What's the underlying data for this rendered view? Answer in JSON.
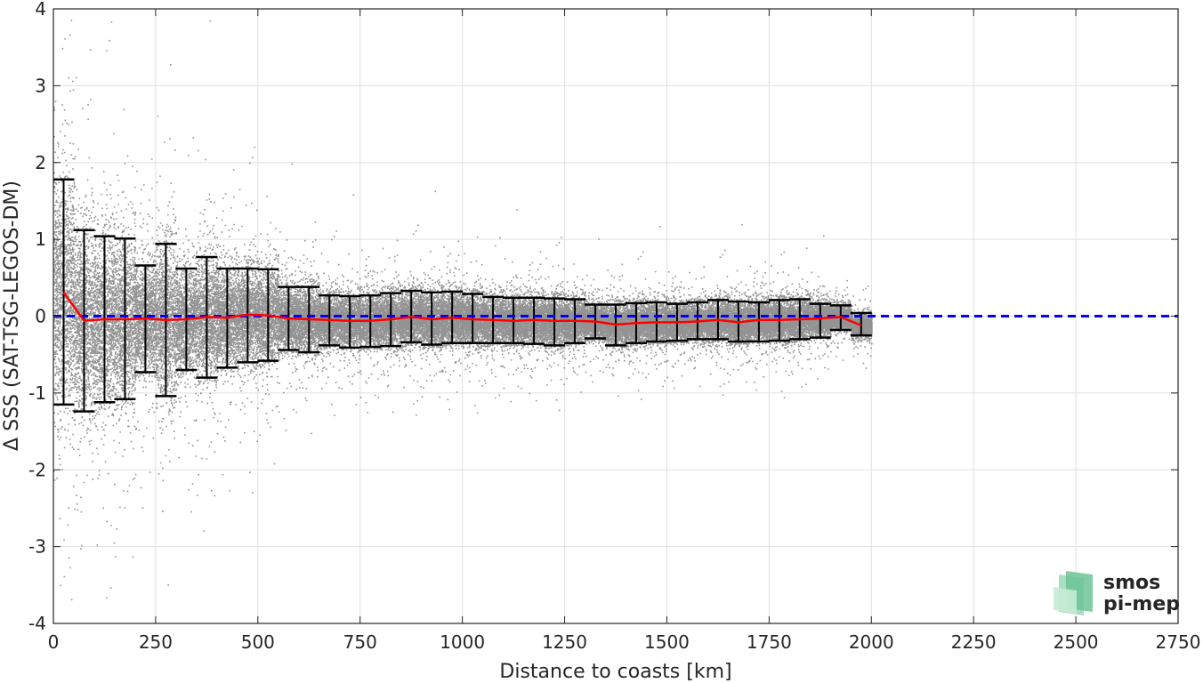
{
  "chart_data": {
    "type": "scatter",
    "title": "",
    "xlabel": "Distance to coasts [km]",
    "ylabel": "Δ SSS (SAT-TSG-LEGOS-DM)",
    "xlim": [
      0,
      2750
    ],
    "ylim": [
      -4,
      4
    ],
    "grid": true,
    "x_ticks": [
      "0",
      "250",
      "500",
      "750",
      "1000",
      "1250",
      "1500",
      "1750",
      "2000",
      "2250",
      "2500",
      "2750"
    ],
    "y_ticks": [
      "4",
      "3",
      "2",
      "1",
      "0",
      "-1",
      "-2",
      "-3",
      "-4"
    ],
    "reference_line": {
      "y": 0,
      "color": "#0000ff",
      "style": "dashed"
    },
    "scatter_color": "#808080",
    "mean_color": "#ff0000",
    "errorbar_color": "#000000",
    "bins": [
      {
        "x": 25,
        "mean": 0.31,
        "lower": -1.15,
        "upper": 1.78
      },
      {
        "x": 75,
        "mean": -0.06,
        "lower": -1.24,
        "upper": 1.12
      },
      {
        "x": 125,
        "mean": -0.04,
        "lower": -1.12,
        "upper": 1.04
      },
      {
        "x": 175,
        "mean": -0.04,
        "lower": -1.08,
        "upper": 1.01
      },
      {
        "x": 225,
        "mean": -0.03,
        "lower": -0.73,
        "upper": 0.66
      },
      {
        "x": 275,
        "mean": -0.05,
        "lower": -1.04,
        "upper": 0.94
      },
      {
        "x": 325,
        "mean": -0.04,
        "lower": -0.7,
        "upper": 0.62
      },
      {
        "x": 375,
        "mean": -0.01,
        "lower": -0.8,
        "upper": 0.77
      },
      {
        "x": 425,
        "mean": -0.02,
        "lower": -0.67,
        "upper": 0.62
      },
      {
        "x": 475,
        "mean": 0.02,
        "lower": -0.6,
        "upper": 0.62
      },
      {
        "x": 525,
        "mean": 0.01,
        "lower": -0.58,
        "upper": 0.61
      },
      {
        "x": 575,
        "mean": -0.03,
        "lower": -0.44,
        "upper": 0.38
      },
      {
        "x": 625,
        "mean": -0.04,
        "lower": -0.47,
        "upper": 0.38
      },
      {
        "x": 675,
        "mean": -0.05,
        "lower": -0.38,
        "upper": 0.27
      },
      {
        "x": 725,
        "mean": -0.06,
        "lower": -0.41,
        "upper": 0.26
      },
      {
        "x": 775,
        "mean": -0.06,
        "lower": -0.4,
        "upper": 0.27
      },
      {
        "x": 825,
        "mean": -0.04,
        "lower": -0.39,
        "upper": 0.3
      },
      {
        "x": 875,
        "mean": -0.01,
        "lower": -0.34,
        "upper": 0.33
      },
      {
        "x": 925,
        "mean": -0.04,
        "lower": -0.37,
        "upper": 0.31
      },
      {
        "x": 975,
        "mean": -0.02,
        "lower": -0.35,
        "upper": 0.32
      },
      {
        "x": 1025,
        "mean": -0.04,
        "lower": -0.35,
        "upper": 0.29
      },
      {
        "x": 1075,
        "mean": -0.05,
        "lower": -0.35,
        "upper": 0.25
      },
      {
        "x": 1125,
        "mean": -0.06,
        "lower": -0.35,
        "upper": 0.24
      },
      {
        "x": 1175,
        "mean": -0.05,
        "lower": -0.36,
        "upper": 0.24
      },
      {
        "x": 1225,
        "mean": -0.06,
        "lower": -0.38,
        "upper": 0.23
      },
      {
        "x": 1275,
        "mean": -0.06,
        "lower": -0.35,
        "upper": 0.22
      },
      {
        "x": 1325,
        "mean": -0.07,
        "lower": -0.29,
        "upper": 0.15
      },
      {
        "x": 1375,
        "mean": -0.11,
        "lower": -0.38,
        "upper": 0.15
      },
      {
        "x": 1425,
        "mean": -0.09,
        "lower": -0.35,
        "upper": 0.17
      },
      {
        "x": 1475,
        "mean": -0.08,
        "lower": -0.33,
        "upper": 0.18
      },
      {
        "x": 1525,
        "mean": -0.08,
        "lower": -0.32,
        "upper": 0.16
      },
      {
        "x": 1575,
        "mean": -0.07,
        "lower": -0.3,
        "upper": 0.18
      },
      {
        "x": 1625,
        "mean": -0.05,
        "lower": -0.3,
        "upper": 0.21
      },
      {
        "x": 1675,
        "mean": -0.08,
        "lower": -0.33,
        "upper": 0.19
      },
      {
        "x": 1725,
        "mean": -0.05,
        "lower": -0.33,
        "upper": 0.18
      },
      {
        "x": 1775,
        "mean": -0.05,
        "lower": -0.32,
        "upper": 0.21
      },
      {
        "x": 1825,
        "mean": -0.04,
        "lower": -0.3,
        "upper": 0.22
      },
      {
        "x": 1875,
        "mean": -0.03,
        "lower": -0.28,
        "upper": 0.16
      },
      {
        "x": 1925,
        "mean": -0.01,
        "lower": -0.18,
        "upper": 0.14
      },
      {
        "x": 1975,
        "mean": -0.12,
        "lower": -0.25,
        "upper": 0.04
      }
    ]
  },
  "logo": {
    "line1": "smos",
    "line2": "pi-mep",
    "color": "#5cb88a"
  }
}
